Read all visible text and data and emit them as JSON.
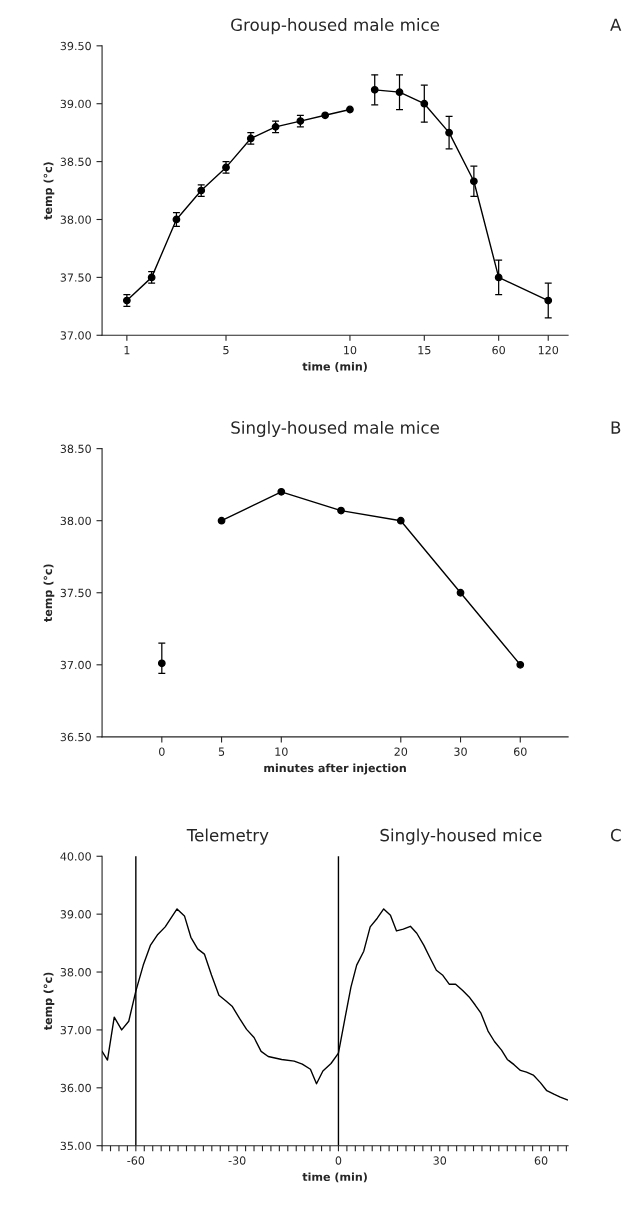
{
  "chart_data": [
    {
      "type": "line",
      "title": "Group-housed male mice",
      "xlabel": "time (min)",
      "ylabel": "temp (°c)",
      "annotations": [
        "A"
      ],
      "marker": "circle",
      "categories": [
        "1",
        null,
        null,
        null,
        "5",
        null,
        null,
        null,
        null,
        "10",
        null,
        null,
        "15",
        null,
        null,
        "60",
        null,
        "120"
      ],
      "ylim": [
        37,
        39.5
      ],
      "yticks": [
        {
          "value": 37,
          "label": "37.00"
        },
        {
          "value": 37.5,
          "label": "37.50"
        },
        {
          "value": 38,
          "label": "38.00"
        },
        {
          "value": 38.5,
          "label": "38.50"
        },
        {
          "value": 39,
          "label": "39.00"
        },
        {
          "value": 39.5,
          "label": "39.50"
        }
      ],
      "series": [
        {
          "color": "#000000",
          "values": [
            37.3,
            37.5,
            38.0,
            38.25,
            38.45,
            38.7,
            38.8,
            38.85,
            38.9,
            38.95,
            null,
            null,
            null,
            null,
            null,
            null,
            null,
            null
          ],
          "errors": [
            0.05,
            0.05,
            0.06,
            0.05,
            0.05,
            0.05,
            0.05,
            0.05,
            null,
            null,
            null,
            null,
            null,
            null,
            null,
            null,
            null,
            null
          ]
        },
        {
          "color": "#000000",
          "values": [
            null,
            null,
            null,
            null,
            null,
            null,
            null,
            null,
            null,
            null,
            39.12,
            39.1,
            39.0,
            38.75,
            38.33,
            37.5,
            null,
            37.3
          ],
          "errors": [
            null,
            null,
            null,
            null,
            null,
            null,
            null,
            null,
            null,
            null,
            0.13,
            0.15,
            0.16,
            0.14,
            0.13,
            0.15,
            null,
            0.15
          ]
        }
      ]
    },
    {
      "type": "line",
      "title": "Singly-housed male mice",
      "xlabel": "minutes after injection",
      "ylabel": "temp (°c)",
      "annotations": [
        "B"
      ],
      "marker": "circle",
      "categories": [
        "0",
        "5",
        "10",
        null,
        "20",
        "30",
        "60"
      ],
      "ylim": [
        36.5,
        38.5
      ],
      "yticks": [
        {
          "value": 36.5,
          "label": "36.50"
        },
        {
          "value": 37,
          "label": "37.00"
        },
        {
          "value": 37.5,
          "label": "37.50"
        },
        {
          "value": 38,
          "label": "38.00"
        },
        {
          "value": 38.5,
          "label": "38.50"
        }
      ],
      "series": [
        {
          "type": "scatter",
          "color": "#000000",
          "values": [
            37.01,
            null,
            null,
            null,
            null,
            null,
            null
          ],
          "errors": [
            [
              36.94,
              37.15
            ],
            null,
            null,
            null,
            null,
            null,
            null
          ]
        },
        {
          "color": "#000000",
          "values": [
            null,
            38.0,
            38.2,
            38.07,
            38.0,
            37.5,
            37.0
          ]
        }
      ]
    },
    {
      "type": "line",
      "title": "Telemetry",
      "subtitle": "Singly-housed mice",
      "xlabel": "time (min)",
      "ylabel": "temp (°c)",
      "annotations": [
        "C"
      ],
      "xlim": [
        -70,
        68
      ],
      "ylim": [
        35,
        40
      ],
      "xticks": [
        {
          "value": -70,
          "label": null
        },
        {
          "value": -67.5,
          "label": null
        },
        {
          "value": -65,
          "label": null
        },
        {
          "value": -62.5,
          "label": null
        },
        -60,
        {
          "value": -57.5,
          "label": null
        },
        {
          "value": -55,
          "label": null
        },
        {
          "value": -52.5,
          "label": null
        },
        {
          "value": -50,
          "label": null
        },
        {
          "value": -47.5,
          "label": null
        },
        {
          "value": -45,
          "label": null
        },
        {
          "value": -42.5,
          "label": null
        },
        {
          "value": -40,
          "label": null
        },
        {
          "value": -37.5,
          "label": null
        },
        {
          "value": -35,
          "label": null
        },
        {
          "value": -32.5,
          "label": null
        },
        -30,
        {
          "value": -27.5,
          "label": null
        },
        {
          "value": -25,
          "label": null
        },
        {
          "value": -22.5,
          "label": null
        },
        {
          "value": -20,
          "label": null
        },
        {
          "value": -17.5,
          "label": null
        },
        {
          "value": -15,
          "label": null
        },
        {
          "value": -12.5,
          "label": null
        },
        {
          "value": -10,
          "label": null
        },
        {
          "value": -7.5,
          "label": null
        },
        {
          "value": -5,
          "label": null
        },
        {
          "value": -2.5,
          "label": null
        },
        0,
        {
          "value": 2.5,
          "label": null
        },
        {
          "value": 5,
          "label": null
        },
        {
          "value": 7.5,
          "label": null
        },
        {
          "value": 10,
          "label": null
        },
        {
          "value": 12.5,
          "label": null
        },
        {
          "value": 15,
          "label": null
        },
        {
          "value": 17.5,
          "label": null
        },
        {
          "value": 20,
          "label": null
        },
        {
          "value": 22.5,
          "label": null
        },
        {
          "value": 25,
          "label": null
        },
        {
          "value": 27.5,
          "label": null
        },
        30,
        {
          "value": 32.5,
          "label": null
        },
        {
          "value": 35,
          "label": null
        },
        {
          "value": 37.5,
          "label": null
        },
        {
          "value": 40,
          "label": null
        },
        {
          "value": 42.5,
          "label": null
        },
        {
          "value": 45,
          "label": null
        },
        {
          "value": 47.5,
          "label": null
        },
        {
          "value": 50,
          "label": null
        },
        {
          "value": 52.5,
          "label": null
        },
        {
          "value": 55,
          "label": null
        },
        {
          "value": 57.5,
          "label": null
        },
        60,
        {
          "value": 62.5,
          "label": null
        },
        {
          "value": 65,
          "label": null
        },
        {
          "value": 67.5,
          "label": null
        }
      ],
      "yticks": [
        {
          "value": 35,
          "label": "35.00"
        },
        {
          "value": 36,
          "label": "36.00"
        },
        {
          "value": 37,
          "label": "37.00"
        },
        {
          "value": 38,
          "label": "38.00"
        },
        {
          "value": 39,
          "label": "39.00"
        },
        {
          "value": 40,
          "label": "40.00"
        }
      ],
      "ref_lines": [
        {
          "axis": "x",
          "value": -60,
          "color": "#000000"
        },
        {
          "axis": "x",
          "value": 0,
          "color": "#000000"
        }
      ],
      "series": [
        {
          "color": "#000000",
          "x": [
            -70,
            -68.4,
            -66.4,
            -64.2,
            -62.1,
            -60,
            -57.8,
            -55.7,
            -53.5,
            -51.3,
            -47.8,
            -45.6,
            -43.7,
            -41.7,
            -39.7,
            -37.6,
            -35.4,
            -33.3,
            -31.5,
            -29.3,
            -27.2,
            -25.0,
            -22.9,
            -20.8,
            -16.8,
            -13.1,
            -10.7,
            -8.3,
            -6.5,
            -4.6,
            -2.2,
            0,
            2.0,
            3.7,
            5.4,
            7.5,
            9.4,
            11.5,
            13.4,
            15.4,
            17.2,
            19.2,
            21.3,
            23.2,
            25.3,
            27.0,
            29.0,
            30.8,
            32.8,
            34.7,
            36.8,
            38.7,
            40.5,
            42.2,
            44.3,
            46.2,
            48.3,
            50.0,
            52.0,
            53.9,
            55.7,
            57.7,
            59.8,
            61.7,
            63.8,
            65.7,
            67.8
          ],
          "values": [
            36.63,
            36.48,
            37.22,
            37.0,
            37.15,
            37.67,
            38.12,
            38.46,
            38.65,
            38.78,
            39.09,
            38.97,
            38.6,
            38.4,
            38.31,
            37.95,
            37.6,
            37.5,
            37.41,
            37.2,
            37.01,
            36.87,
            36.63,
            36.54,
            36.49,
            36.46,
            36.41,
            36.32,
            36.07,
            36.29,
            36.42,
            36.6,
            37.22,
            37.74,
            38.12,
            38.36,
            38.78,
            38.93,
            39.09,
            38.98,
            38.71,
            38.74,
            38.79,
            38.67,
            38.46,
            38.26,
            38.03,
            37.95,
            37.79,
            37.79,
            37.68,
            37.57,
            37.43,
            37.29,
            36.98,
            36.8,
            36.65,
            36.49,
            36.4,
            36.3,
            36.27,
            36.22,
            36.09,
            35.95,
            35.89,
            35.84,
            35.79
          ]
        }
      ]
    }
  ]
}
